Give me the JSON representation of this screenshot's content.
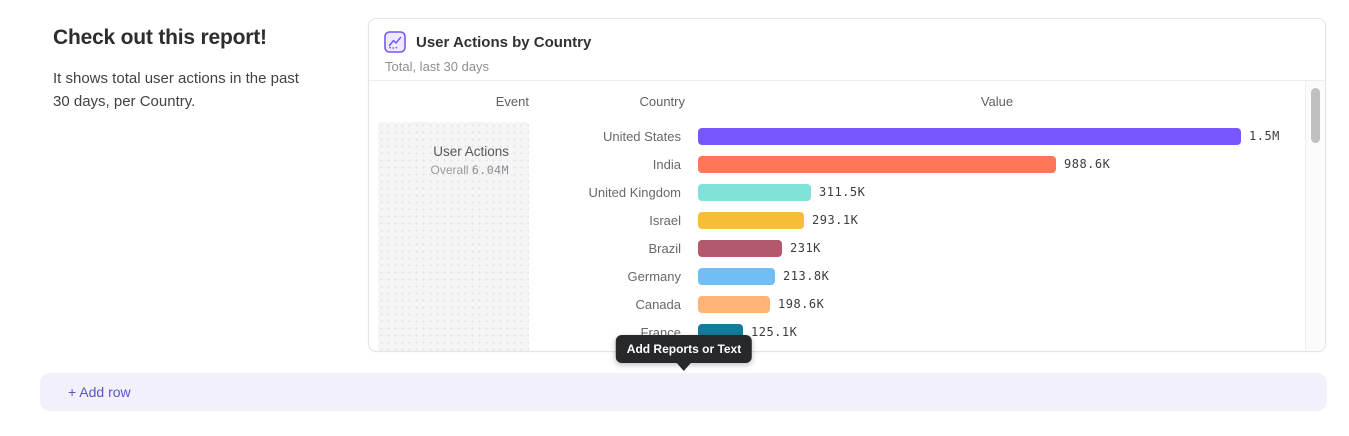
{
  "intro": {
    "heading": "Check out this report!",
    "body": "It shows total user actions in the past 30 days, per Country."
  },
  "report_card": {
    "title": "User Actions by Country",
    "subtitle": "Total, last 30 days",
    "icon": "line-chart-icon"
  },
  "table": {
    "headers": {
      "event": "Event",
      "country": "Country",
      "value": "Value"
    },
    "event_cell": {
      "name": "User Actions",
      "overall_label": "Overall",
      "overall_value": "6.04M"
    }
  },
  "chart_data": {
    "type": "bar",
    "orientation": "horizontal",
    "title": "User Actions by Country",
    "subtitle": "Total, last 30 days",
    "series_event": "User Actions",
    "overall_total": "6.04M",
    "categories": [
      "United States",
      "India",
      "United Kingdom",
      "Israel",
      "Brazil",
      "Germany",
      "Canada",
      "France"
    ],
    "values": [
      1500000,
      988600,
      311500,
      293100,
      231000,
      213800,
      198600,
      125100
    ],
    "value_labels": [
      "1.5M",
      "988.6K",
      "311.5K",
      "293.1K",
      "231K",
      "213.8K",
      "198.6K",
      "125.1K"
    ],
    "bar_colors": [
      "#7856FF",
      "#FF7557",
      "#80E1D9",
      "#F8BC3B",
      "#B2596E",
      "#72BEF4",
      "#FFB377",
      "#137B9C"
    ],
    "xlim": [
      0,
      1500000
    ],
    "grid": "off",
    "legend": "none"
  },
  "tooltip": {
    "label": "Add Reports or Text"
  },
  "add_row": {
    "label": "+ Add row"
  },
  "colors": {
    "accent_purple": "#7856FF",
    "tooltip_bg": "#27282C",
    "add_row_bg": "#F1F0FB",
    "add_row_text": "#5B55C9",
    "scroll_thumb": "#BFBFC4"
  }
}
